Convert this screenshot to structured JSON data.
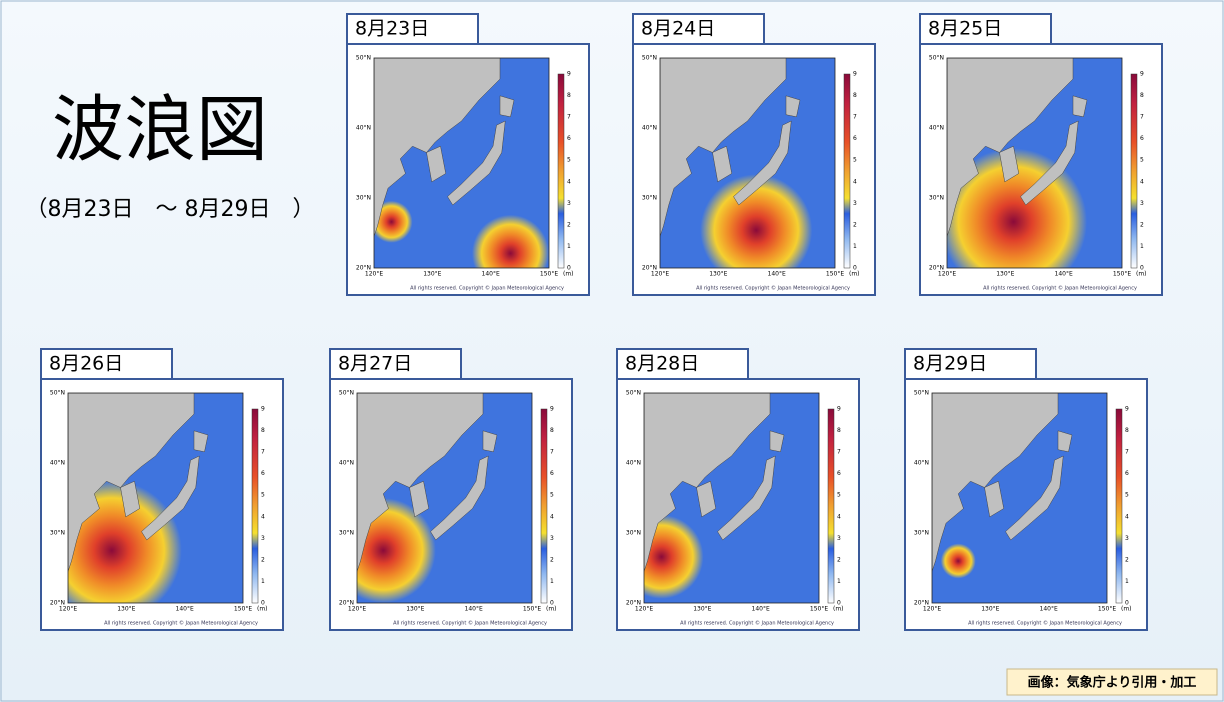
{
  "title": "波浪図",
  "period": "（8月23日　～ 8月29日　）",
  "panels": [
    {
      "date": "8月23日"
    },
    {
      "date": "8月24日"
    },
    {
      "date": "8月25日"
    },
    {
      "date": "8月26日"
    },
    {
      "date": "8月27日"
    },
    {
      "date": "8月28日"
    },
    {
      "date": "8月29日"
    }
  ],
  "map_labels": {
    "lat": [
      "50°N",
      "40°N",
      "30°N",
      "20°N"
    ],
    "lon": [
      "120°E",
      "130°E",
      "140°E",
      "150°E"
    ],
    "colorbar": [
      "9",
      "8",
      "7",
      "6",
      "5",
      "4",
      "3",
      "2",
      "1",
      "0"
    ],
    "unit": "(m)",
    "copyright": "All rights reserved. Copyright © Japan Meteorological Agency"
  },
  "credit": "画像：気象庁より引用・加工"
}
